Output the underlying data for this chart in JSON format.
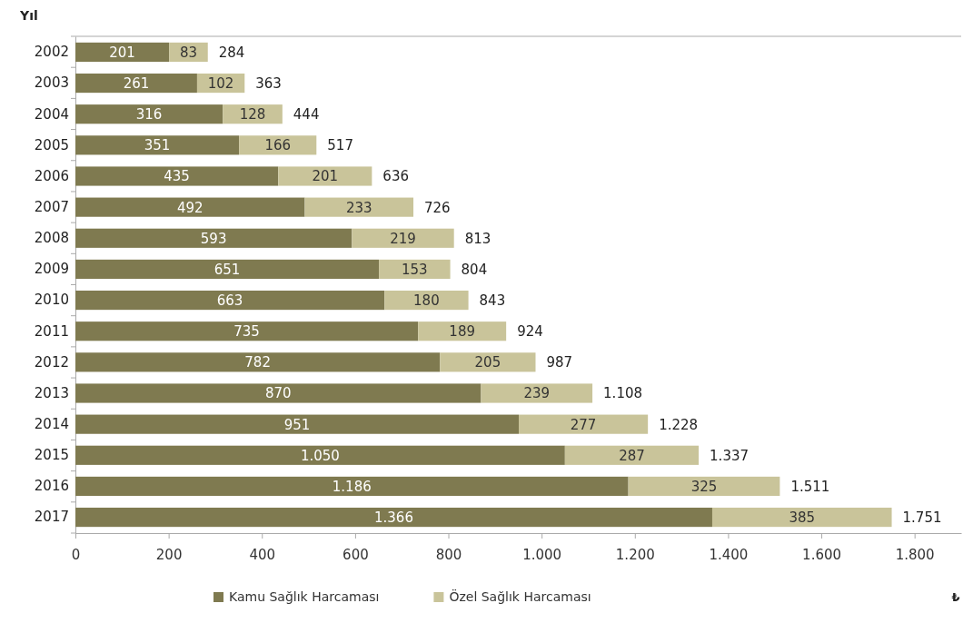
{
  "chart_data": {
    "type": "bar",
    "orientation": "horizontal",
    "stacked": true,
    "ylabel": "Yıl",
    "xlabel": "₺",
    "categories": [
      "2002",
      "2003",
      "2004",
      "2005",
      "2006",
      "2007",
      "2008",
      "2009",
      "2010",
      "2011",
      "2012",
      "2013",
      "2014",
      "2015",
      "2016",
      "2017"
    ],
    "series": [
      {
        "name": "Kamu Sağlık Harcaması",
        "color": "#7f7a50",
        "values": [
          201,
          261,
          316,
          351,
          435,
          492,
          593,
          651,
          663,
          735,
          782,
          870,
          951,
          1050,
          1186,
          1366
        ],
        "value_labels": [
          "201",
          "261",
          "316",
          "351",
          "435",
          "492",
          "593",
          "651",
          "663",
          "735",
          "782",
          "870",
          "951",
          "1.050",
          "1.186",
          "1.366"
        ]
      },
      {
        "name": "Özel Sağlık Harcaması",
        "color": "#c9c49a",
        "values": [
          83,
          102,
          128,
          166,
          201,
          233,
          219,
          153,
          180,
          189,
          205,
          239,
          277,
          287,
          325,
          385
        ],
        "value_labels": [
          "83",
          "102",
          "128",
          "166",
          "201",
          "233",
          "219",
          "153",
          "180",
          "189",
          "205",
          "239",
          "277",
          "287",
          "325",
          "385"
        ]
      }
    ],
    "totals": [
      "284",
      "363",
      "444",
      "517",
      "636",
      "726",
      "813",
      "804",
      "843",
      "924",
      "987",
      "1.108",
      "1.228",
      "1.337",
      "1.511",
      "1.751"
    ],
    "xlim": [
      0,
      1900
    ],
    "xticks": [
      0,
      200,
      400,
      600,
      800,
      {
        "value": 1000,
        "label": "1.000"
      },
      {
        "value": 1200,
        "label": "1.200"
      },
      {
        "value": 1400,
        "label": "1.400"
      },
      {
        "value": 1600,
        "label": "1.600"
      },
      {
        "value": 1800,
        "label": "1.800"
      }
    ],
    "legend": "bottom"
  }
}
